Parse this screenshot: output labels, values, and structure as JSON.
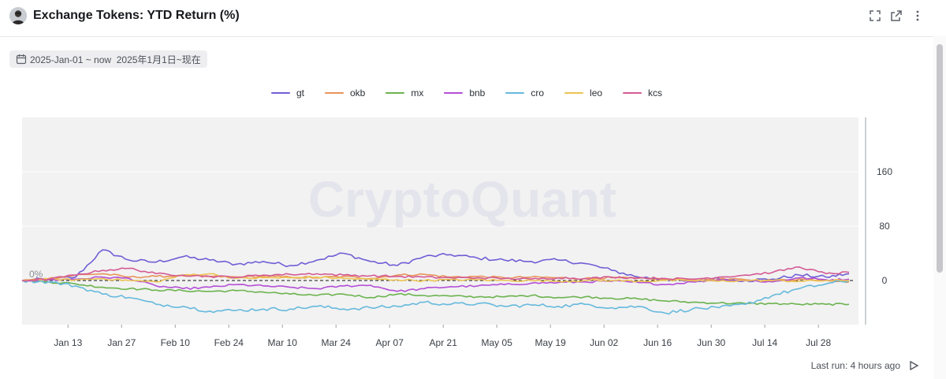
{
  "header": {
    "title": "Exchange Tokens: YTD Return (%)",
    "icons": [
      "avatar",
      "fullscreen-icon",
      "external-link-icon",
      "more-vertical-icon"
    ]
  },
  "date_range": {
    "label": "2025-Jan-01 ~ now  2025年1月1日~现在",
    "icon": "calendar-icon"
  },
  "watermark": "CryptoQuant",
  "zero_label": "0%",
  "footer": {
    "last_run": "Last run: 4 hours ago",
    "icon": "play-icon"
  },
  "colors": {
    "gt": "#6f5fd6",
    "okb": "#e8935a",
    "mx": "#6cb34f",
    "bnb": "#b44fd6",
    "cro": "#66b9dd",
    "leo": "#ecc452",
    "kcs": "#d45a94",
    "plot_bg": "#f2f2f2"
  },
  "chart_data": {
    "type": "line",
    "title": "Exchange Tokens: YTD Return (%)",
    "xlabel": "",
    "ylabel": "",
    "x_ticks": [
      "Jan 13",
      "Jan 27",
      "Feb 10",
      "Feb 24",
      "Mar 10",
      "Mar 24",
      "Apr 07",
      "Apr 21",
      "May 05",
      "May 19",
      "Jun 02",
      "Jun 16",
      "Jun 30",
      "Jul 14",
      "Jul 28"
    ],
    "y_ticks": [
      0,
      80,
      160
    ],
    "ylim": [
      -65,
      240
    ],
    "x": [
      "2025-01-01",
      "2025-01-08",
      "2025-01-15",
      "2025-01-22",
      "2025-01-29",
      "2025-02-05",
      "2025-02-12",
      "2025-02-19",
      "2025-02-26",
      "2025-03-05",
      "2025-03-12",
      "2025-03-19",
      "2025-03-26",
      "2025-04-02",
      "2025-04-09",
      "2025-04-16",
      "2025-04-23",
      "2025-04-30",
      "2025-05-07",
      "2025-05-14",
      "2025-05-21",
      "2025-05-28",
      "2025-06-04",
      "2025-06-11",
      "2025-06-18",
      "2025-06-25",
      "2025-07-02",
      "2025-07-09",
      "2025-07-16",
      "2025-07-23",
      "2025-07-30",
      "2025-08-05"
    ],
    "series": [
      {
        "name": "gt",
        "values": [
          0,
          2,
          5,
          45,
          30,
          27,
          35,
          30,
          24,
          28,
          22,
          30,
          40,
          28,
          22,
          35,
          38,
          33,
          30,
          28,
          30,
          25,
          15,
          5,
          2,
          -2,
          3,
          0,
          2,
          8,
          5,
          10
        ]
      },
      {
        "name": "okb",
        "values": [
          0,
          3,
          8,
          10,
          5,
          6,
          7,
          6,
          5,
          6,
          5,
          4,
          6,
          3,
          8,
          9,
          5,
          6,
          4,
          5,
          4,
          3,
          4,
          3,
          2,
          1,
          2,
          1,
          0,
          2,
          1,
          -2
        ]
      },
      {
        "name": "mx",
        "values": [
          0,
          -2,
          -5,
          -10,
          -12,
          -14,
          -15,
          -16,
          -15,
          -17,
          -20,
          -22,
          -20,
          -25,
          -20,
          -22,
          -23,
          -24,
          -24,
          -22,
          -25,
          -24,
          -26,
          -27,
          -30,
          -32,
          -33,
          -34,
          -34,
          -35,
          -35,
          -35
        ]
      },
      {
        "name": "bnb",
        "values": [
          0,
          1,
          2,
          5,
          3,
          -8,
          -12,
          -10,
          -6,
          -8,
          -10,
          -12,
          -8,
          -7,
          -16,
          -12,
          -9,
          -8,
          -6,
          -4,
          -3,
          -2,
          -1,
          -3,
          -6,
          -2,
          1,
          0,
          -2,
          4,
          1,
          2
        ]
      },
      {
        "name": "cro",
        "values": [
          0,
          -2,
          -8,
          -20,
          -25,
          -35,
          -38,
          -45,
          -44,
          -42,
          -42,
          -38,
          -42,
          -40,
          -38,
          -32,
          -35,
          -34,
          -38,
          -36,
          -38,
          -35,
          -40,
          -38,
          -48,
          -42,
          -40,
          -35,
          -22,
          -12,
          -5,
          0
        ]
      },
      {
        "name": "leo",
        "values": [
          0,
          2,
          1,
          3,
          0,
          -2,
          8,
          10,
          3,
          4,
          4,
          5,
          3,
          2,
          1,
          0,
          1,
          1,
          0,
          0,
          -1,
          0,
          0,
          -1,
          0,
          0,
          -1,
          0,
          0,
          -1,
          0,
          0
        ]
      },
      {
        "name": "kcs",
        "values": [
          0,
          2,
          8,
          15,
          18,
          10,
          8,
          6,
          5,
          8,
          9,
          10,
          8,
          7,
          6,
          5,
          4,
          4,
          3,
          2,
          4,
          3,
          5,
          4,
          3,
          2,
          5,
          8,
          12,
          20,
          10,
          12
        ]
      }
    ],
    "grid": true,
    "legend": "top-center",
    "y_axis_position": "right"
  }
}
